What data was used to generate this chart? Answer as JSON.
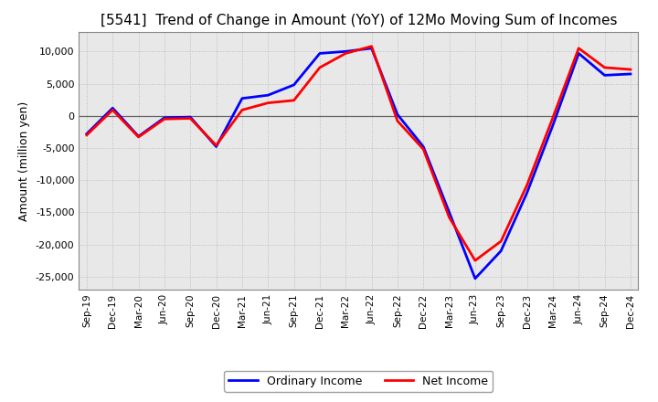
{
  "title": "[5541]  Trend of Change in Amount (YoY) of 12Mo Moving Sum of Incomes",
  "ylabel": "Amount (million yen)",
  "x_labels": [
    "Sep-19",
    "Dec-19",
    "Mar-20",
    "Jun-20",
    "Sep-20",
    "Dec-20",
    "Mar-21",
    "Jun-21",
    "Sep-21",
    "Dec-21",
    "Mar-22",
    "Jun-22",
    "Sep-22",
    "Dec-22",
    "Mar-23",
    "Jun-23",
    "Sep-23",
    "Dec-23",
    "Mar-24",
    "Jun-24",
    "Sep-24",
    "Dec-24"
  ],
  "ordinary_income": [
    -2800,
    1200,
    -3200,
    -300,
    -200,
    -4800,
    2700,
    3200,
    4800,
    9700,
    10000,
    10500,
    200,
    -4800,
    -15000,
    -25300,
    -21000,
    -12000,
    -1500,
    9700,
    6300,
    6500
  ],
  "net_income": [
    -3000,
    900,
    -3300,
    -500,
    -400,
    -4600,
    900,
    2000,
    2400,
    7500,
    9700,
    10800,
    -800,
    -5200,
    -15800,
    -22500,
    -19500,
    -10800,
    -300,
    10500,
    7500,
    7200
  ],
  "ordinary_color": "#0000FF",
  "net_color": "#FF0000",
  "ylim": [
    -27000,
    13000
  ],
  "yticks": [
    -25000,
    -20000,
    -15000,
    -10000,
    -5000,
    0,
    5000,
    10000
  ],
  "background_color": "#FFFFFF",
  "plot_bg_color": "#E8E8E8",
  "grid_color": "#BBBBBB",
  "legend_labels": [
    "Ordinary Income",
    "Net Income"
  ],
  "line_width": 2.0,
  "title_fontsize": 11,
  "ylabel_fontsize": 9
}
